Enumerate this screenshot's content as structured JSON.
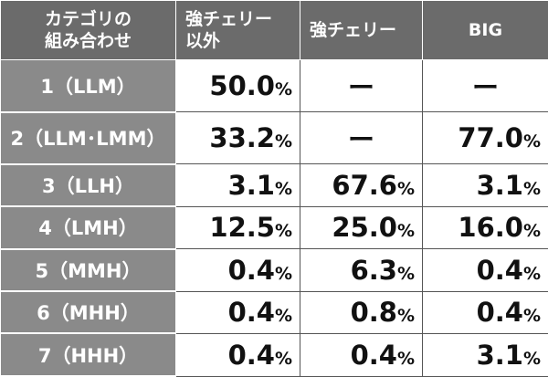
{
  "table": {
    "header": [
      [
        "カテゴリの",
        "組み合わせ"
      ],
      [
        "強チェリー",
        "以外"
      ],
      [
        "強チェリー"
      ],
      [
        "BIG"
      ]
    ],
    "rows": [
      [
        "1（LLM）",
        "50.0%",
        "ー",
        "ー"
      ],
      [
        "2（LLM･LMM）",
        "33.2%",
        "ー",
        "77.0%"
      ],
      [
        "3（LLH）",
        "3.1%",
        "67.6%",
        "3.1%"
      ],
      [
        "4（LMH）",
        "12.5%",
        "25.0%",
        "16.0%"
      ],
      [
        "5（MMH）",
        "0.4%",
        "6.3%",
        "0.4%"
      ],
      [
        "6（MHH）",
        "0.4%",
        "0.8%",
        "0.4%"
      ],
      [
        "7（HHH）",
        "0.4%",
        "0.4%",
        "3.1%"
      ]
    ]
  }
}
